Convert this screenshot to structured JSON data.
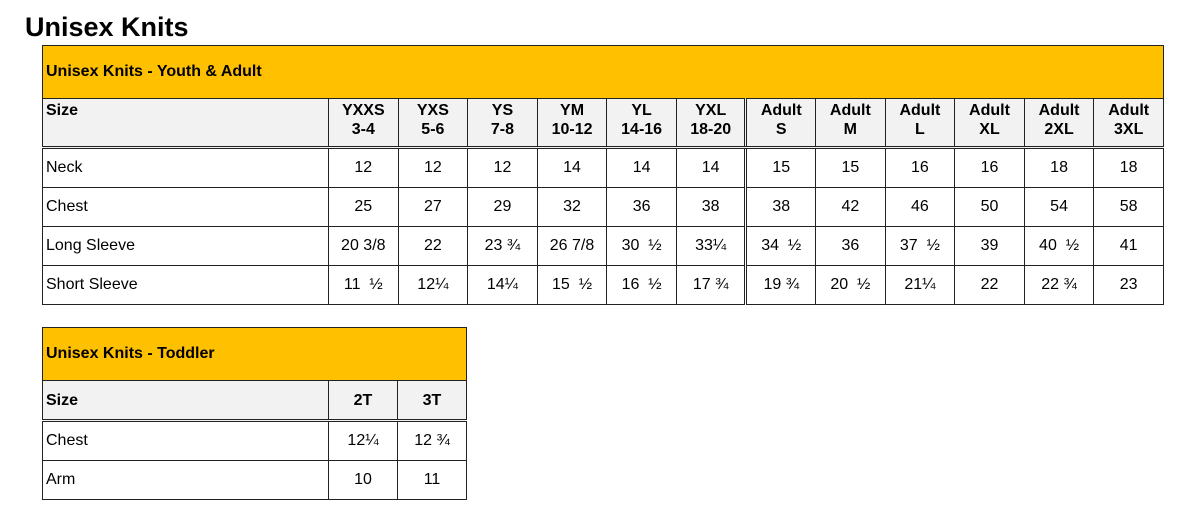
{
  "page_title": "Unisex Knits",
  "youth_adult": {
    "title": "Unisex Knits - Youth & Adult",
    "size_label": "Size",
    "columns": [
      [
        "YXXS",
        "3-4"
      ],
      [
        "YXS",
        "5-6"
      ],
      [
        "YS",
        "7-8"
      ],
      [
        "YM",
        "10-12"
      ],
      [
        "YL",
        "14-16"
      ],
      [
        "YXL",
        "18-20"
      ],
      [
        "Adult",
        "S"
      ],
      [
        "Adult",
        "M"
      ],
      [
        "Adult",
        "L"
      ],
      [
        "Adult",
        "XL"
      ],
      [
        "Adult",
        "2XL"
      ],
      [
        "Adult",
        "3XL"
      ]
    ],
    "rows": [
      {
        "label": "Neck",
        "values": [
          "12",
          "12",
          "12",
          "14",
          "14",
          "14",
          "15",
          "15",
          "16",
          "16",
          "18",
          "18"
        ]
      },
      {
        "label": "Chest",
        "values": [
          "25",
          "27",
          "29",
          "32",
          "36",
          "38",
          "38",
          "42",
          "46",
          "50",
          "54",
          "58"
        ]
      },
      {
        "label": "Long Sleeve",
        "values": [
          "20 3/8",
          "22",
          "23 ¾",
          "26 7/8",
          "30  ½",
          "33¼",
          "34  ½",
          "36",
          "37  ½",
          "39",
          "40  ½",
          "41"
        ]
      },
      {
        "label": "Short Sleeve",
        "values": [
          "11  ½",
          "12¼",
          "14¼",
          "15  ½",
          "16  ½",
          "17 ¾",
          "19 ¾",
          "20  ½",
          "21¼",
          "22",
          "22 ¾",
          "23"
        ]
      }
    ]
  },
  "toddler": {
    "title": "Unisex Knits - Toddler",
    "size_label": "Size",
    "columns": [
      [
        "2T"
      ],
      [
        "3T"
      ]
    ],
    "rows": [
      {
        "label": "Chest",
        "values": [
          "12¼",
          "12 ¾"
        ]
      },
      {
        "label": "Arm",
        "values": [
          "10",
          "11"
        ]
      }
    ]
  },
  "colors": {
    "banner": "#ffc000",
    "header_bg": "#f2f2f2"
  }
}
